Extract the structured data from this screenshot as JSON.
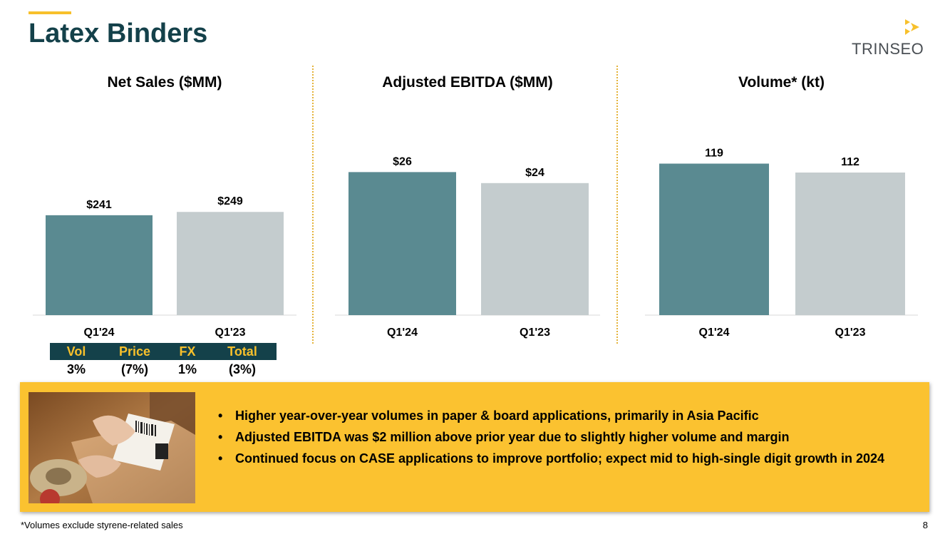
{
  "slide": {
    "title": "Latex Binders",
    "logo_text": "TRINSEO",
    "footnote": "*Volumes exclude styrene-related sales",
    "page_number": "8"
  },
  "colors": {
    "accent": "#f7c02b",
    "title": "#14414a",
    "bar_current": "#5a8a91",
    "bar_prior": "#c4ccce",
    "panel": "#fbc230"
  },
  "chart_data": [
    {
      "type": "bar",
      "title": "Net Sales ($MM)",
      "categories": [
        "Q1'24",
        "Q1'23"
      ],
      "values": [
        241,
        249
      ],
      "labels": [
        "$241",
        "$249"
      ],
      "ylim": [
        0,
        430
      ],
      "xlabel": "",
      "ylabel": ""
    },
    {
      "type": "bar",
      "title": "Adjusted EBITDA ($MM)",
      "categories": [
        "Q1'24",
        "Q1'23"
      ],
      "values": [
        26,
        24
      ],
      "labels": [
        "$26",
        "$24"
      ],
      "ylim": [
        0,
        32.4
      ],
      "xlabel": "",
      "ylabel": ""
    },
    {
      "type": "bar",
      "title": "Volume* (kt)",
      "categories": [
        "Q1'24",
        "Q1'23"
      ],
      "values": [
        119,
        112
      ],
      "labels": [
        "119",
        "112"
      ],
      "ylim": [
        0,
        140
      ],
      "xlabel": "",
      "ylabel": ""
    }
  ],
  "bridge": {
    "headers": [
      "Vol",
      "Price",
      "FX",
      "Total"
    ],
    "values": [
      "3%",
      "(7%)",
      "1%",
      "(3%)"
    ]
  },
  "highlights": {
    "bullets": [
      "Higher year-over-year volumes in paper & board applications, primarily in Asia Pacific",
      "Adjusted EBITDA was $2 million above prior year due to slightly higher volume and margin",
      "Continued focus on CASE applications to improve portfolio; expect mid to high-single digit growth in 2024"
    ],
    "photo_icon": "shipping-package-photo"
  }
}
